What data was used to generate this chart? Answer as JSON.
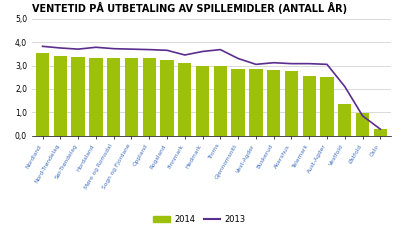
{
  "title": "VENTETID PÅ UTBETALING AV SPILLEMIDLER (ANTALL ÅR)",
  "categories": [
    "Nordland",
    "Nord-Trøndelag",
    "Sør-Trøndelag",
    "Hordaland",
    "Møre og Romsdal",
    "Sogn og Fjordane",
    "Oppland",
    "Rogaland",
    "Finnmark",
    "Hedmark",
    "Troms",
    "Gjennomsnitt",
    "Vest-Agder",
    "Buskerud",
    "Akershus",
    "Telemark",
    "Aust-Agder",
    "Vestfold",
    "Østfold",
    "Oslo"
  ],
  "values_2014": [
    3.55,
    3.4,
    3.38,
    3.32,
    3.32,
    3.32,
    3.32,
    3.22,
    3.1,
    3.0,
    2.98,
    2.85,
    2.85,
    2.8,
    2.75,
    2.55,
    2.52,
    1.35,
    0.95,
    0.28
  ],
  "values_2013": [
    3.82,
    3.75,
    3.7,
    3.78,
    3.72,
    3.7,
    3.68,
    3.65,
    3.45,
    3.6,
    3.68,
    3.3,
    3.05,
    3.12,
    3.08,
    3.08,
    3.05,
    2.1,
    0.85,
    0.28
  ],
  "bar_color": "#9DC10A",
  "line_color": "#5B2D8E",
  "ylim": [
    0,
    5.0
  ],
  "yticks": [
    0.0,
    1.0,
    2.0,
    3.0,
    4.0,
    5.0
  ],
  "ytick_labels": [
    "0,0",
    "1,0",
    "2,0",
    "3,0",
    "4,0",
    "5,0"
  ],
  "legend_2014": "2014",
  "legend_2013": "2013",
  "background_color": "#ffffff",
  "grid_color": "#cccccc",
  "xlabel_color": "#4472C4",
  "title_fontsize": 7.0,
  "tick_fontsize": 5.5,
  "xlabel_fontsize": 4.2
}
